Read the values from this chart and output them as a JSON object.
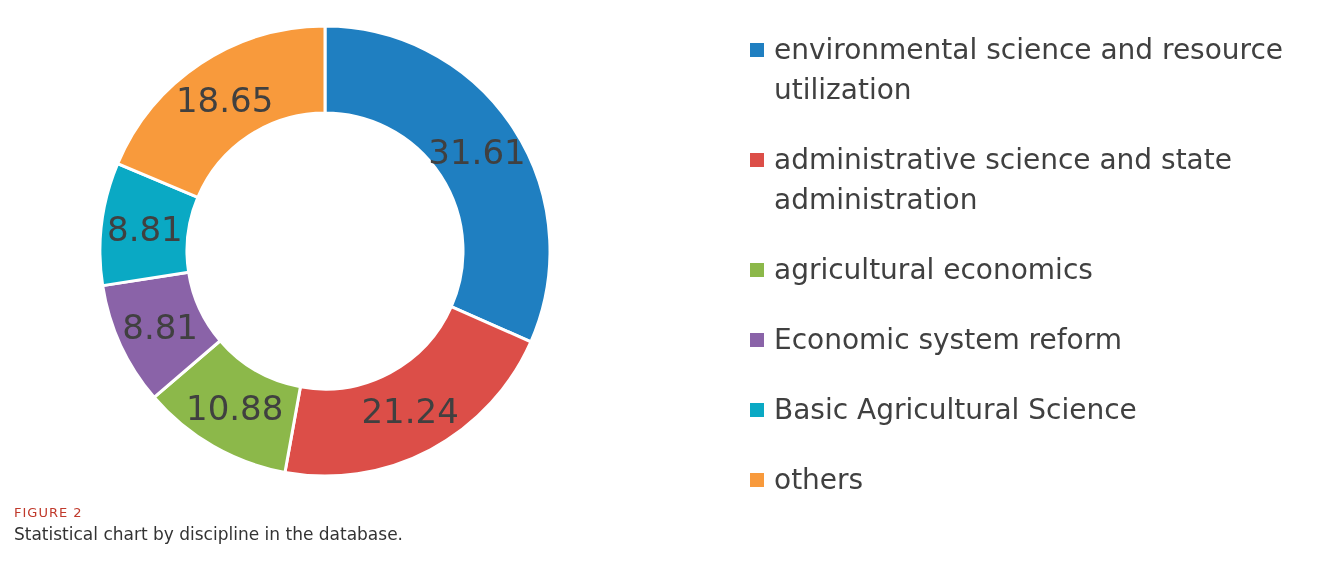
{
  "chart_data": {
    "type": "donut",
    "categories": [
      "environmental science and resource utilization",
      "administrative science and state administration",
      "agricultural economics",
      "Economic system reform",
      "Basic Agricultural Science",
      "others"
    ],
    "values": [
      31.61,
      21.24,
      10.88,
      8.81,
      8.81,
      18.65
    ],
    "colors": [
      "#1f7fc1",
      "#dc4e48",
      "#8cb84a",
      "#8a63a8",
      "#0aa9c4",
      "#f89a3c"
    ],
    "data_labels": true,
    "legend": "right",
    "annotations": [
      "FIGURE 2",
      "Statistical chart by discipline in the database."
    ]
  }
}
